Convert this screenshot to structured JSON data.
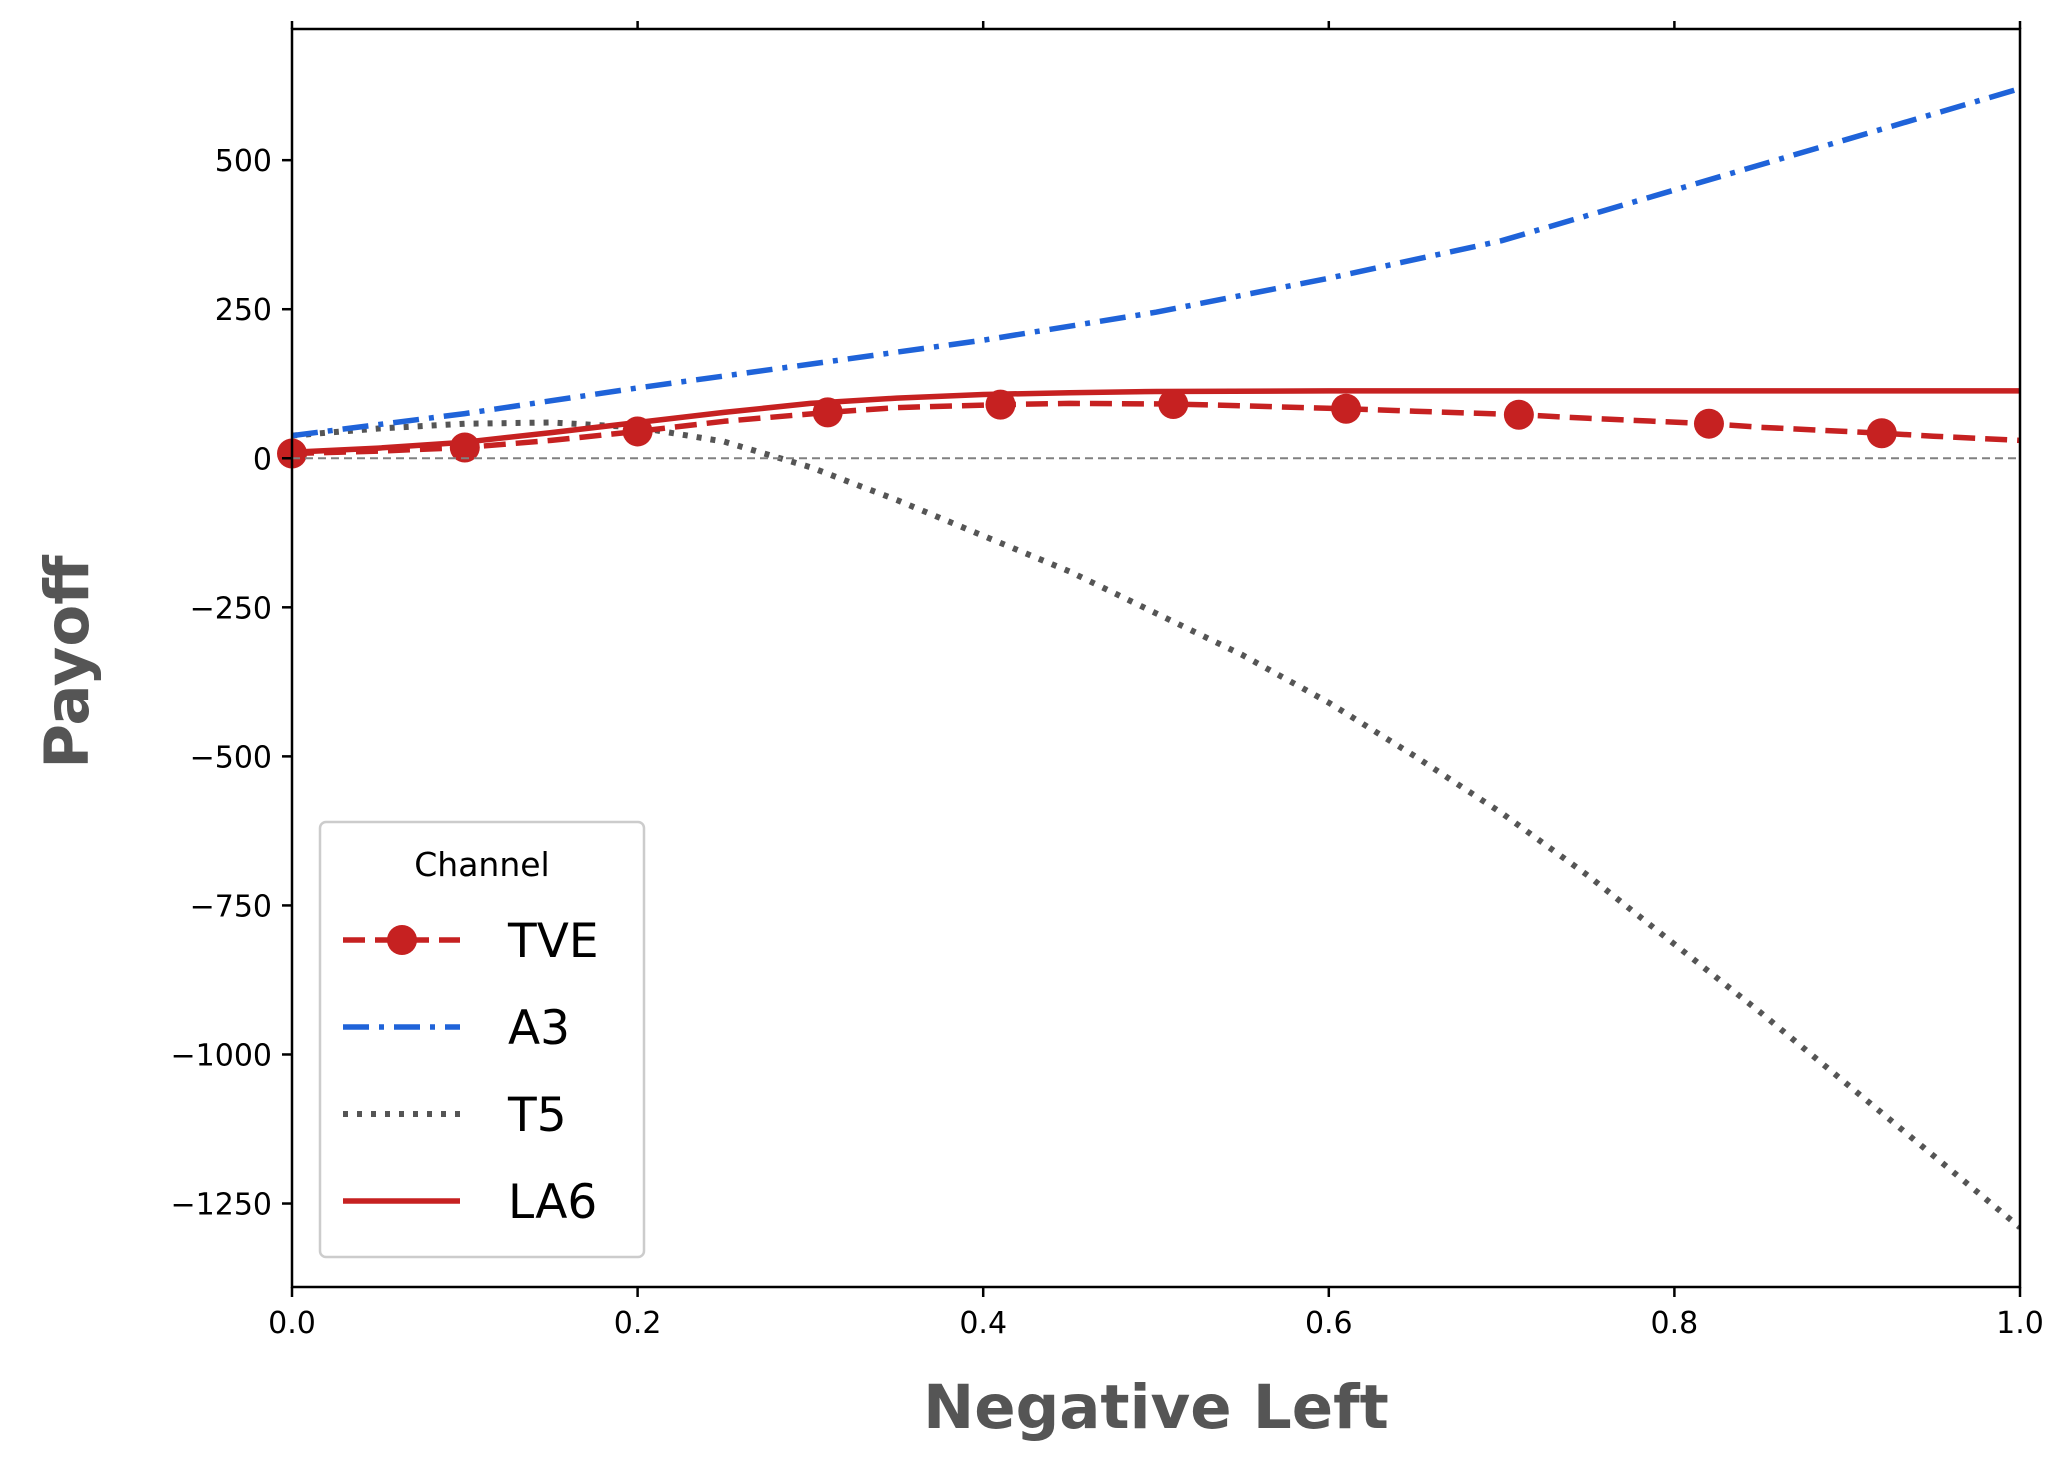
{
  "chart_data": {
    "type": "line",
    "xlabel": "Negative Left",
    "ylabel": "Payoff",
    "xlim": [
      0.0,
      1.0
    ],
    "ylim": [
      -1390,
      720
    ],
    "xticks": [
      0.0,
      0.2,
      0.4,
      0.6,
      0.8,
      1.0
    ],
    "xtick_labels": [
      "0.0",
      "0.2",
      "0.4",
      "0.6",
      "0.8",
      "1.0"
    ],
    "yticks": [
      500,
      250,
      0,
      -250,
      -500,
      -750,
      -1000,
      -1250
    ],
    "ytick_labels": [
      "500",
      "250",
      "0",
      "−250",
      "−500",
      "−750",
      "−1000",
      "−1250"
    ],
    "reference_line": {
      "y": 0,
      "style": "dashed",
      "color": "#808080"
    },
    "grid": false,
    "legend": {
      "title": "Channel",
      "position": "lower-left"
    },
    "series": [
      {
        "name": "TVE",
        "color": "#c62121",
        "style": "dashed",
        "marker": "circle",
        "x": [
          0.0,
          0.05,
          0.1,
          0.15,
          0.2,
          0.25,
          0.31,
          0.35,
          0.41,
          0.45,
          0.51,
          0.55,
          0.61,
          0.65,
          0.71,
          0.75,
          0.82,
          0.85,
          0.92,
          0.95,
          1.0
        ],
        "y": [
          8,
          12,
          18,
          30,
          45,
          62,
          77,
          85,
          90,
          92,
          91,
          88,
          83,
          79,
          73,
          67,
          58,
          52,
          42,
          37,
          30
        ],
        "marker_x": [
          0.0,
          0.1,
          0.2,
          0.31,
          0.41,
          0.51,
          0.61,
          0.71,
          0.82,
          0.92
        ],
        "marker_y": [
          8,
          18,
          45,
          77,
          90,
          91,
          83,
          73,
          58,
          42
        ]
      },
      {
        "name": "A3",
        "color": "#1f63d9",
        "style": "dashdot",
        "x": [
          0.0,
          0.1,
          0.2,
          0.3,
          0.4,
          0.5,
          0.6,
          0.7,
          0.8,
          0.9,
          1.0
        ],
        "y": [
          38,
          75,
          118,
          158,
          198,
          245,
          302,
          365,
          450,
          535,
          620
        ]
      },
      {
        "name": "T5",
        "color": "#555555",
        "style": "dotted",
        "x": [
          0.0,
          0.05,
          0.1,
          0.15,
          0.2,
          0.25,
          0.3,
          0.35,
          0.4,
          0.45,
          0.5,
          0.55,
          0.6,
          0.65,
          0.7,
          0.75,
          0.8,
          0.85,
          0.9,
          0.95,
          1.0
        ],
        "y": [
          38,
          50,
          58,
          60,
          52,
          28,
          -15,
          -70,
          -130,
          -190,
          -260,
          -330,
          -410,
          -500,
          -595,
          -700,
          -815,
          -930,
          -1050,
          -1170,
          -1290
        ]
      },
      {
        "name": "LA6",
        "color": "#c62121",
        "style": "solid",
        "x": [
          0.0,
          0.05,
          0.1,
          0.15,
          0.2,
          0.25,
          0.3,
          0.35,
          0.4,
          0.45,
          0.5,
          0.6,
          0.7,
          0.8,
          0.9,
          1.0
        ],
        "y": [
          10,
          17,
          27,
          43,
          60,
          77,
          92,
          101,
          107,
          110,
          112,
          113,
          113,
          113,
          113,
          113
        ]
      }
    ]
  }
}
